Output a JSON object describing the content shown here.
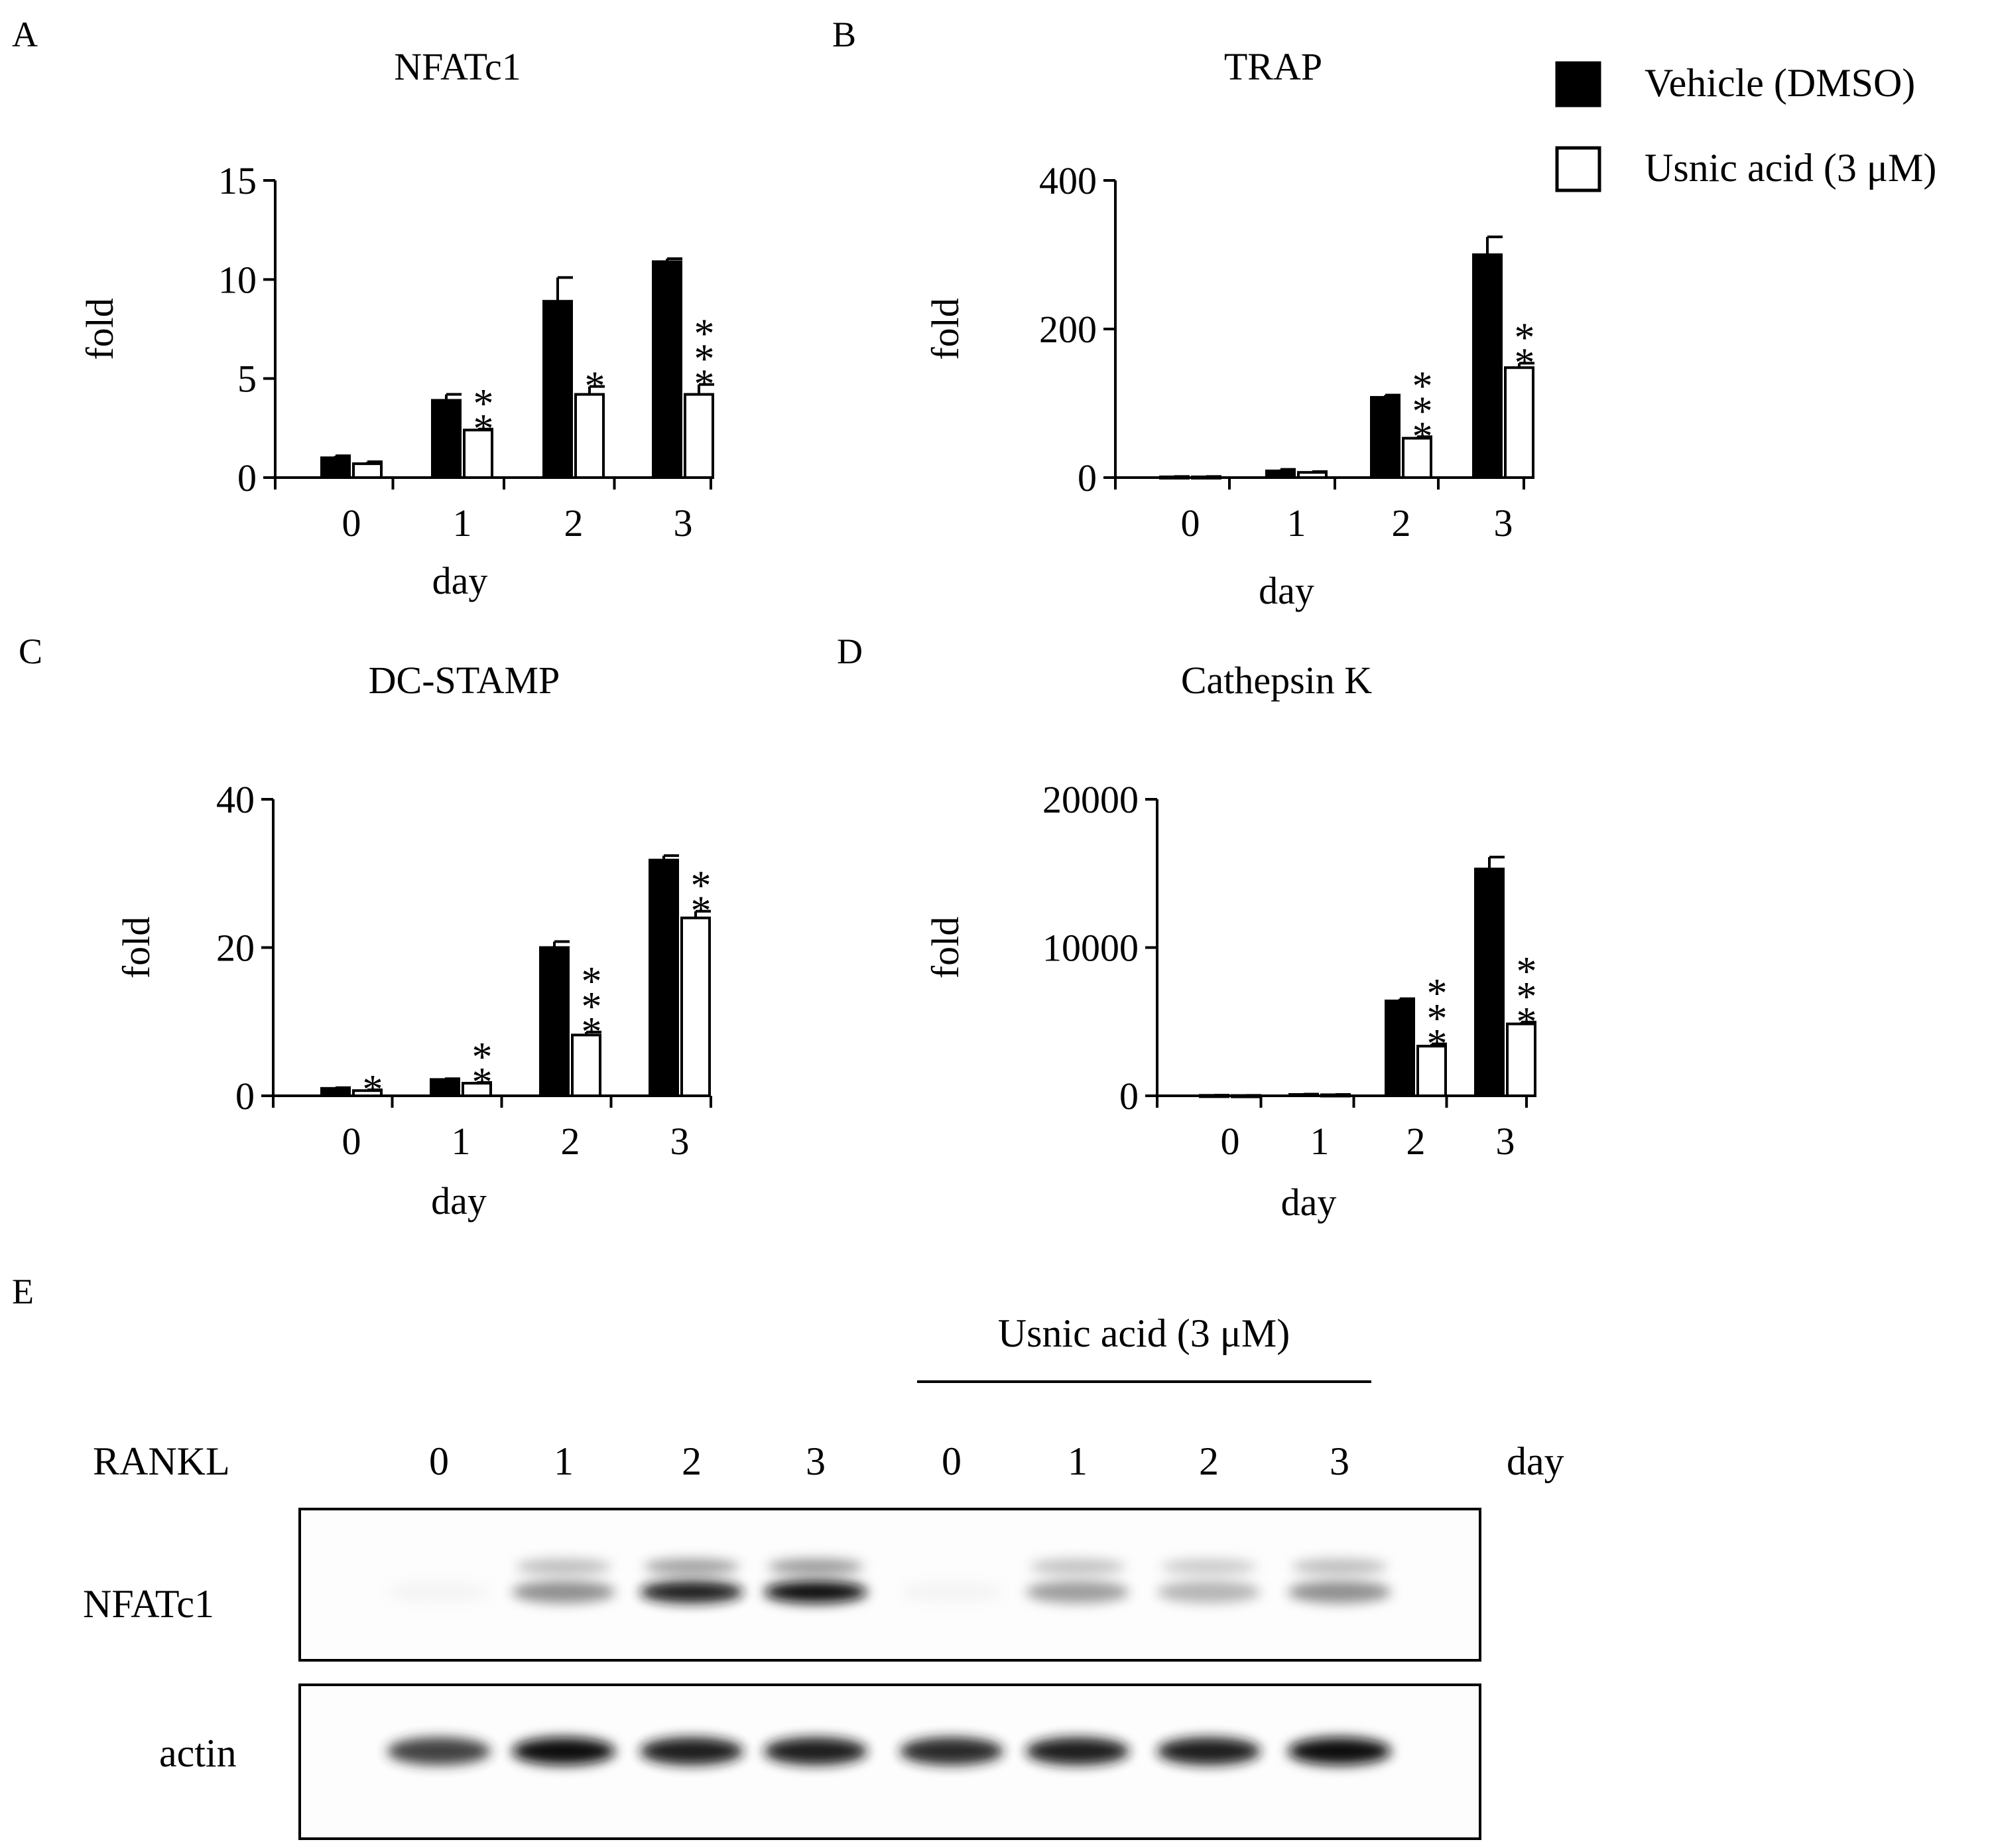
{
  "legend": {
    "items": [
      {
        "label": "Vehicle (DMSO)",
        "fill": "#000000"
      },
      {
        "label": "Usnic acid (3 μM)",
        "fill": "#ffffff"
      }
    ],
    "placement": "top-right"
  },
  "chart_data": [
    {
      "panel": "A",
      "type": "bar",
      "title": "NFATc1",
      "xlabel": "day",
      "ylabel": "fold",
      "categories": [
        "0",
        "1",
        "2",
        "3"
      ],
      "ylim": [
        0,
        15
      ],
      "yticks": [
        0,
        5,
        10,
        15
      ],
      "grid": false,
      "series": [
        {
          "name": "Vehicle (DMSO)",
          "values": [
            1.0,
            3.9,
            8.9,
            10.9
          ],
          "errors": [
            0.1,
            0.3,
            1.2,
            0.15
          ]
        },
        {
          "name": "Usnic acid (3 μM)",
          "values": [
            0.7,
            2.4,
            4.2,
            4.2
          ],
          "errors": [
            0.1,
            0.05,
            0.4,
            0.5
          ]
        }
      ],
      "annotations": [
        {
          "category": "1",
          "text": "**"
        },
        {
          "category": "2",
          "text": "*"
        },
        {
          "category": "3",
          "text": "***"
        }
      ]
    },
    {
      "panel": "B",
      "type": "bar",
      "title": "TRAP",
      "xlabel": "day",
      "ylabel": "fold",
      "categories": [
        "0",
        "1",
        "2",
        "3"
      ],
      "ylim": [
        0,
        400
      ],
      "yticks": [
        0,
        200,
        400
      ],
      "grid": false,
      "series": [
        {
          "name": "Vehicle (DMSO)",
          "values": [
            1,
            9,
            108,
            300
          ],
          "errors": [
            0.5,
            2,
            3,
            24
          ]
        },
        {
          "name": "Usnic acid (3 μM)",
          "values": [
            1,
            7,
            53,
            148
          ],
          "errors": [
            0.5,
            1,
            2,
            6
          ]
        }
      ],
      "annotations": [
        {
          "category": "2",
          "text": "***"
        },
        {
          "category": "3",
          "text": "**"
        }
      ]
    },
    {
      "panel": "C",
      "type": "bar",
      "title": "DC-STAMP",
      "xlabel": "day",
      "ylabel": "fold",
      "categories": [
        "0",
        "1",
        "2",
        "3"
      ],
      "ylim": [
        0,
        40
      ],
      "yticks": [
        0,
        20,
        40
      ],
      "grid": false,
      "series": [
        {
          "name": "Vehicle (DMSO)",
          "values": [
            1.0,
            2.2,
            20.0,
            31.8
          ],
          "errors": [
            0.1,
            0.1,
            0.8,
            0.6
          ]
        },
        {
          "name": "Usnic acid (3 μM)",
          "values": [
            0.7,
            1.7,
            8.2,
            24.0
          ],
          "errors": [
            0.1,
            0.1,
            0.4,
            0.9
          ]
        }
      ],
      "annotations": [
        {
          "category": "0",
          "text": "*"
        },
        {
          "category": "1",
          "text": "**"
        },
        {
          "category": "2",
          "text": "***"
        },
        {
          "category": "3",
          "text": "**"
        }
      ]
    },
    {
      "panel": "D",
      "type": "bar",
      "title": "Cathepsin K",
      "xlabel": "day",
      "ylabel": "fold",
      "categories": [
        "0",
        "1",
        "2",
        "3"
      ],
      "ylim": [
        0,
        20000
      ],
      "yticks": [
        0,
        10000,
        20000
      ],
      "grid": false,
      "series": [
        {
          "name": "Vehicle (DMSO)",
          "values": [
            30,
            90,
            6400,
            15300
          ],
          "errors": [
            10,
            20,
            150,
            800
          ]
        },
        {
          "name": "Usnic acid (3 μM)",
          "values": [
            20,
            70,
            3350,
            4850
          ],
          "errors": [
            10,
            20,
            150,
            120
          ]
        }
      ],
      "annotations": [
        {
          "category": "2",
          "text": "***"
        },
        {
          "category": "3",
          "text": "***"
        }
      ]
    }
  ],
  "blot": {
    "panel": "E",
    "treatment_label": "Usnic acid (3 μM)",
    "rankl_label": "RANKL",
    "day_label": "day",
    "lanes": [
      "0",
      "1",
      "2",
      "3",
      "0",
      "1",
      "2",
      "3"
    ],
    "rows": [
      {
        "label": "NFATc1",
        "band_intensity": [
          0.03,
          0.6,
          0.95,
          1.0,
          0.03,
          0.55,
          0.45,
          0.6
        ]
      },
      {
        "label": "actin",
        "band_intensity": [
          0.85,
          1.0,
          0.95,
          0.95,
          0.92,
          0.95,
          0.95,
          1.0
        ]
      }
    ]
  }
}
